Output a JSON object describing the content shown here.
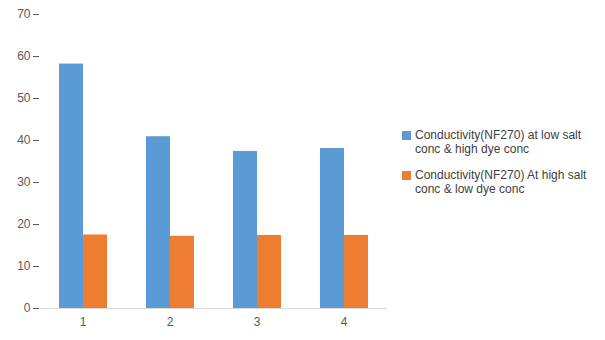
{
  "chart_data": {
    "type": "bar",
    "categories": [
      "1",
      "2",
      "3",
      "4"
    ],
    "series": [
      {
        "name": "Conductivity(NF270) at low salt conc & high dye conc",
        "color": "#5b9bd5",
        "values": [
          58.2,
          40.9,
          37.4,
          38.1
        ]
      },
      {
        "name": "Conductivity(NF270) At high salt conc & low dye conc",
        "color": "#ed7d31",
        "values": [
          17.5,
          17.2,
          17.4,
          17.4
        ]
      }
    ],
    "ylim": [
      0,
      70
    ],
    "yticks": [
      0,
      10,
      20,
      30,
      40,
      50,
      60,
      70
    ],
    "grid": false,
    "legend": "right"
  }
}
